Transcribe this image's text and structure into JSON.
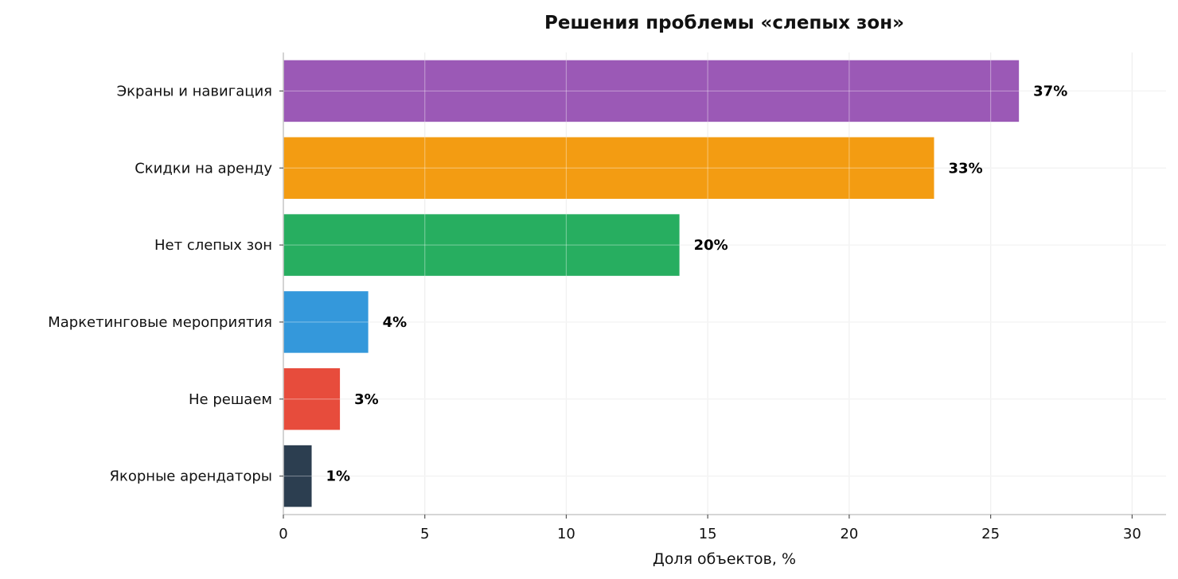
{
  "chart_data": {
    "type": "bar",
    "orientation": "horizontal",
    "title": "Решения проблемы «слепых зон»",
    "xlabel": "Доля объектов, %",
    "ylabel": "",
    "xlim": [
      0,
      31.2
    ],
    "xticks": [
      0,
      5,
      10,
      15,
      20,
      25,
      30
    ],
    "grid": true,
    "categories": [
      "Экраны и навигация",
      "Скидки на аренду",
      "Нет слепых зон",
      "Маркетинговые мероприятия",
      "Не решаем",
      "Якорные арендаторы"
    ],
    "values": [
      26,
      23,
      14,
      3,
      2,
      1
    ],
    "data_labels": [
      "37%",
      "33%",
      "20%",
      "4%",
      "3%",
      "1%"
    ],
    "colors": [
      "#9b59b6",
      "#f39c12",
      "#27ae60",
      "#3498db",
      "#e74c3c",
      "#2c3e50"
    ]
  }
}
